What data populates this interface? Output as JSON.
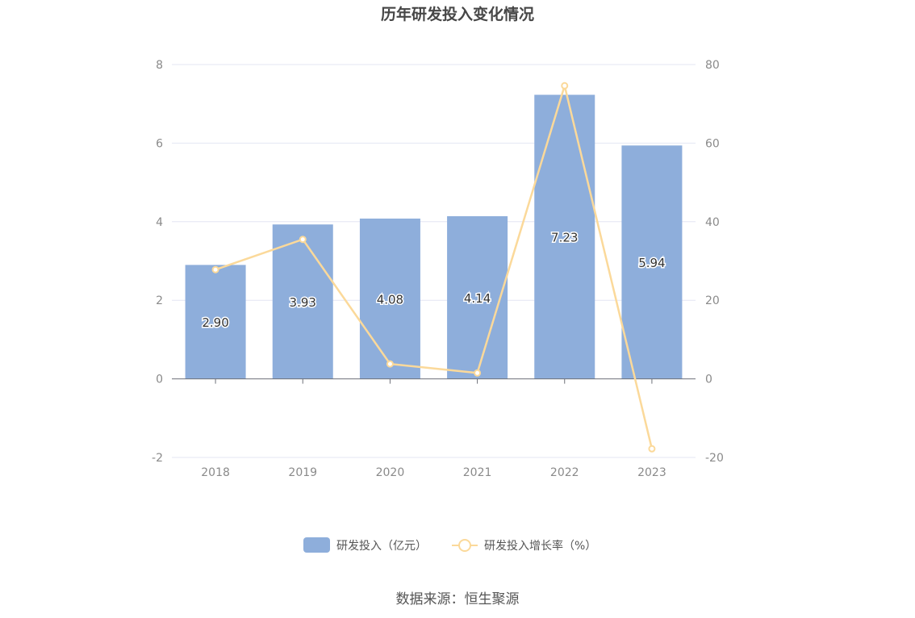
{
  "chart_data": {
    "type": "bar",
    "title": "历年研发投入变化情况",
    "categories": [
      "2018",
      "2019",
      "2020",
      "2021",
      "2022",
      "2023"
    ],
    "series": [
      {
        "name": "研发投入（亿元）",
        "type": "bar",
        "axis": "left",
        "color": "#8eaedb",
        "values": [
          2.9,
          3.93,
          4.08,
          4.14,
          7.23,
          5.94
        ],
        "labels": [
          "2.90",
          "3.93",
          "4.08",
          "4.14",
          "7.23",
          "5.94"
        ]
      },
      {
        "name": "研发投入增长率（%）",
        "type": "line",
        "axis": "right",
        "color": "#fbd99a",
        "values": [
          27.8,
          35.5,
          3.8,
          1.5,
          74.6,
          -17.8
        ]
      }
    ],
    "y_left": {
      "min": -2,
      "max": 8,
      "ticks": [
        "-2",
        "0",
        "2",
        "4",
        "6",
        "8"
      ]
    },
    "y_right": {
      "min": -20,
      "max": 80,
      "ticks": [
        "-20",
        "0",
        "20",
        "40",
        "60",
        "80"
      ]
    },
    "grid": true,
    "legend_position": "bottom"
  },
  "source": "数据来源：恒生聚源"
}
